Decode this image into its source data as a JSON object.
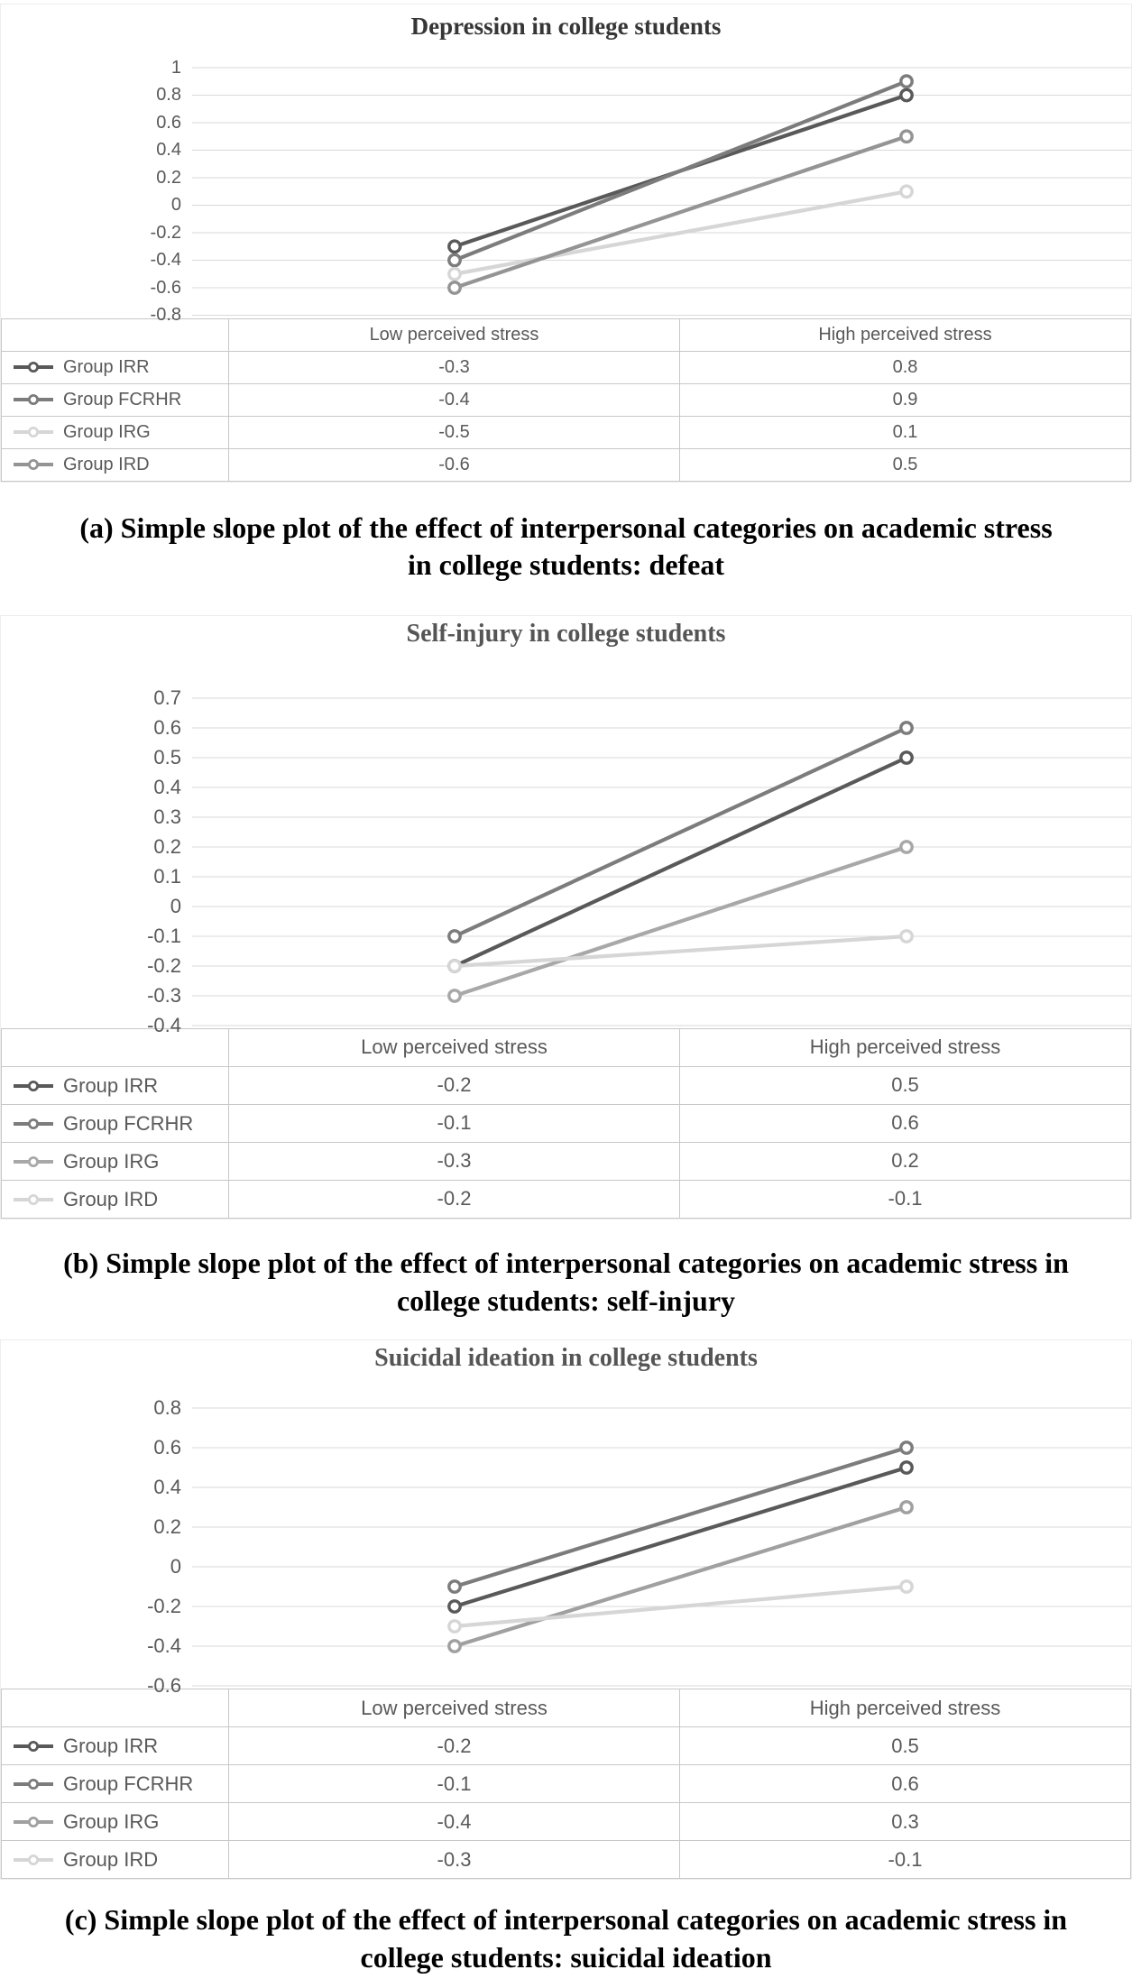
{
  "figure": {
    "background": "#ffffff",
    "axis_text_color": "#595959",
    "table_border_color": "#c8c8c8",
    "caption_color": "#000000"
  },
  "chart_data": [
    {
      "id": "a",
      "type": "line",
      "title": "Depression in college students",
      "categories": [
        "Low perceived stress",
        "High perceived stress"
      ],
      "series": [
        {
          "name": "Group IRR",
          "values": [
            -0.3,
            0.8
          ],
          "color": "#595959"
        },
        {
          "name": "Group FCRHR",
          "values": [
            -0.4,
            0.9
          ],
          "color": "#7c7c7c"
        },
        {
          "name": "Group IRG",
          "values": [
            -0.5,
            0.1
          ],
          "color": "#d6d6d6"
        },
        {
          "name": "Group IRD",
          "values": [
            -0.6,
            0.5
          ],
          "color": "#949494"
        }
      ],
      "yticks": [
        1,
        0.8,
        0.6,
        0.4,
        0.2,
        0,
        -0.2,
        -0.4,
        -0.6,
        -0.8
      ],
      "ylim": [
        -0.8,
        1
      ],
      "grid": true,
      "grid_color": "#d9d9d9",
      "marker": "open-circle",
      "legend_position": "table-left-column",
      "caption": "(a) Simple slope plot of the effect of interpersonal categories on academic stress in college students: defeat"
    },
    {
      "id": "b",
      "type": "line",
      "title": "Self-injury in college students",
      "categories": [
        "Low perceived stress",
        "High perceived stress"
      ],
      "series": [
        {
          "name": "Group IRR",
          "values": [
            -0.2,
            0.5
          ],
          "color": "#595959"
        },
        {
          "name": "Group FCRHR",
          "values": [
            -0.1,
            0.6
          ],
          "color": "#7c7c7c"
        },
        {
          "name": "Group IRG",
          "values": [
            -0.3,
            0.2
          ],
          "color": "#a8a8a8"
        },
        {
          "name": "Group IRD",
          "values": [
            -0.2,
            -0.1
          ],
          "color": "#d6d6d6"
        }
      ],
      "yticks": [
        0.7,
        0.6,
        0.5,
        0.4,
        0.3,
        0.2,
        0.1,
        0,
        -0.1,
        -0.2,
        -0.3,
        -0.4
      ],
      "ylim": [
        -0.4,
        0.7
      ],
      "grid": true,
      "grid_color": "#d9d9d9",
      "marker": "open-circle",
      "legend_position": "table-left-column",
      "caption": "(b) Simple slope plot of the effect of interpersonal categories on academic stress in college students: self-injury"
    },
    {
      "id": "c",
      "type": "line",
      "title": "Suicidal ideation in college students",
      "categories": [
        "Low perceived stress",
        "High perceived stress"
      ],
      "series": [
        {
          "name": "Group IRR",
          "values": [
            -0.2,
            0.5
          ],
          "color": "#595959"
        },
        {
          "name": "Group FCRHR",
          "values": [
            -0.1,
            0.6
          ],
          "color": "#7c7c7c"
        },
        {
          "name": "Group IRG",
          "values": [
            -0.4,
            0.3
          ],
          "color": "#a0a0a0"
        },
        {
          "name": "Group IRD",
          "values": [
            -0.3,
            -0.1
          ],
          "color": "#d6d6d6"
        }
      ],
      "yticks": [
        0.8,
        0.6,
        0.4,
        0.2,
        0,
        -0.2,
        -0.4,
        -0.6
      ],
      "ylim": [
        -0.6,
        0.8
      ],
      "grid": true,
      "grid_color": "#d9d9d9",
      "marker": "open-circle",
      "legend_position": "table-left-column",
      "caption": "(c) Simple slope plot of the effect of interpersonal categories on academic stress in college students: suicidal ideation"
    }
  ]
}
